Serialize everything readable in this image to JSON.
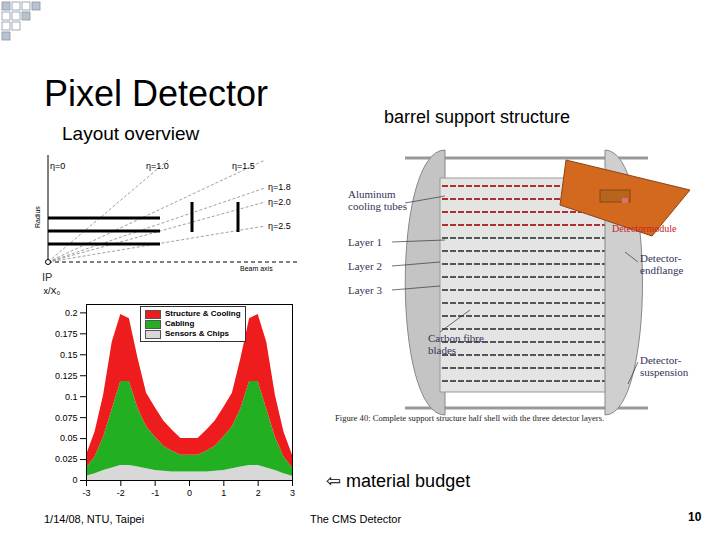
{
  "slide": {
    "title": "Pixel Detector",
    "subtitle": "Layout overview",
    "right_heading": "barrel support structure",
    "layout_diagram": {
      "eta_labels": [
        "η=0",
        "η=1.0",
        "η=1.5",
        "η=1.8",
        "η=2.0",
        "η=2.5"
      ],
      "radius_label": "Radius",
      "beam_label": "Beam axis",
      "ip_label": "IP"
    },
    "figure": {
      "cooling_label": [
        "Aluminum",
        "cooling tubes"
      ],
      "layer_labels": [
        "Layer 1",
        "Layer 2",
        "Layer 3"
      ],
      "blades_label": [
        "Carbon fibre",
        "blades"
      ],
      "endflange_label": [
        "Detector-",
        "endflange"
      ],
      "suspension_label": [
        "Detector-",
        "suspension"
      ],
      "module_label": "Detectormodule",
      "caption": "Figure 40: Complete support structure half shell with the three detector layers."
    },
    "pointer": "⇦ material budget",
    "footer": {
      "left": "1/14/08, NTU, Taipei",
      "center": "The CMS Detector",
      "page": "10"
    }
  },
  "chart_data": {
    "type": "area",
    "stacked": true,
    "ylabel": "x/X₀",
    "x": [
      -3,
      -2.75,
      -2.5,
      -2.25,
      -2,
      -1.75,
      -1.5,
      -1.25,
      -1,
      -0.75,
      -0.5,
      -0.25,
      0,
      0.25,
      0.5,
      0.75,
      1,
      1.25,
      1.5,
      1.75,
      2,
      2.25,
      2.5,
      2.75,
      3
    ],
    "series": [
      {
        "name": "Sensors & Chips",
        "color": "#d8d8d8",
        "values": [
          0.005,
          0.008,
          0.012,
          0.015,
          0.018,
          0.018,
          0.016,
          0.014,
          0.012,
          0.011,
          0.01,
          0.01,
          0.01,
          0.01,
          0.01,
          0.011,
          0.012,
          0.014,
          0.016,
          0.018,
          0.018,
          0.015,
          0.012,
          0.008,
          0.005
        ]
      },
      {
        "name": "Cabling",
        "color": "#22b022",
        "values": [
          0.01,
          0.02,
          0.04,
          0.07,
          0.1,
          0.1,
          0.07,
          0.05,
          0.04,
          0.03,
          0.025,
          0.02,
          0.02,
          0.02,
          0.025,
          0.03,
          0.04,
          0.05,
          0.07,
          0.1,
          0.1,
          0.07,
          0.04,
          0.02,
          0.01
        ]
      },
      {
        "name": "Structure & Cooling",
        "color": "#ee1c1c",
        "values": [
          0.015,
          0.03,
          0.05,
          0.08,
          0.08,
          0.075,
          0.06,
          0.04,
          0.035,
          0.03,
          0.025,
          0.02,
          0.02,
          0.02,
          0.025,
          0.03,
          0.035,
          0.04,
          0.06,
          0.075,
          0.08,
          0.08,
          0.05,
          0.03,
          0.015
        ]
      }
    ],
    "xlim": [
      -3,
      3
    ],
    "ylim": [
      0,
      0.21
    ],
    "xticks": [
      -3,
      -2,
      -1,
      0,
      1,
      2,
      3
    ],
    "yticks": [
      0,
      0.025,
      0.05,
      0.075,
      0.1,
      0.125,
      0.15,
      0.175,
      0.2
    ],
    "legend": "top"
  }
}
